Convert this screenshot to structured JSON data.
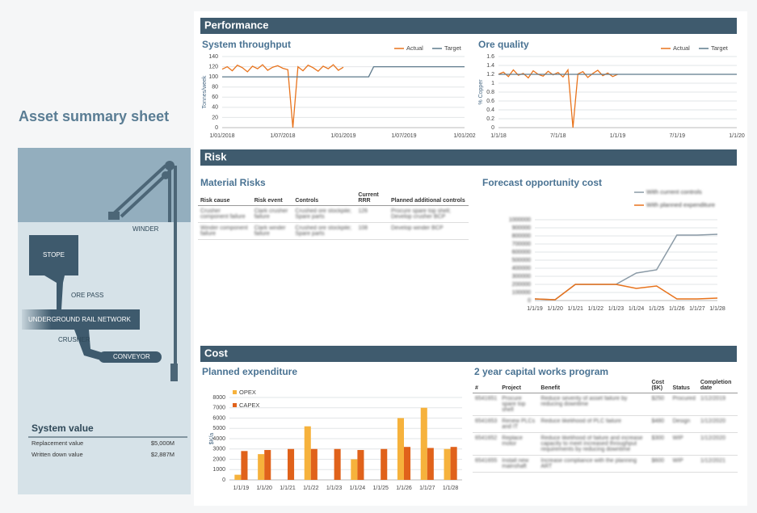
{
  "page_title": "Asset summary sheet",
  "sections": {
    "performance": "Performance",
    "risk": "Risk",
    "cost": "Cost"
  },
  "diagram": {
    "winder": "WINDER",
    "stope": "STOPE",
    "ore_pass": "ORE PASS",
    "rail": "UNDERGROUND RAIL NETWORK",
    "crusher": "CRUSHER",
    "conveyor": "CONVEYOR"
  },
  "system_value": {
    "title": "System value",
    "rows": [
      [
        "Replacement value",
        "$5,000M"
      ],
      [
        "Written down value",
        "$2,887M"
      ]
    ]
  },
  "material_risks": {
    "title": "Material Risks",
    "header": [
      "Risk cause",
      "Risk event",
      "Controls",
      "Current RRR",
      "Planned additional controls"
    ],
    "rows": [
      [
        "Crusher component failure",
        "Clark crusher failure",
        "Crushed ore stockpile; Spare parts",
        "126",
        "Procure spare top shell; Develop crusher BCP"
      ],
      [
        "Winder component failure",
        "Clark winder failure",
        "Crushed ore stockpile; Spare parts",
        "108",
        "Develop winder BCP"
      ]
    ]
  },
  "capital_works": {
    "title": "2 year capital works program",
    "header": [
      "#",
      "Project",
      "Benefit",
      "Cost ($K)",
      "Status",
      "Completion date"
    ],
    "rows": [
      [
        "6541651",
        "Procure spare top shell",
        "Reduce severity of asset failure by reducing downtime",
        "$250",
        "Procured",
        "1/12/2019"
      ],
      [
        "6541653",
        "Renew PLCs and IT",
        "Reduce likelihood of PLC failure",
        "$480",
        "Design",
        "1/12/2020"
      ],
      [
        "6541652",
        "Replace motor",
        "Reduce likelihood of failure and increase capacity to meet increased throughput requirements by reducing downtime",
        "$300",
        "WIP",
        "1/12/2020"
      ],
      [
        "6541655",
        "Install new mainshaft",
        "Increase compliance with the planning ART",
        "$600",
        "WIP",
        "1/12/2021"
      ]
    ]
  },
  "chart_data": [
    {
      "type": "line",
      "title": "System throughput",
      "y_label": "Tonnes/week",
      "categories": [
        "1/01/2018",
        null,
        null,
        null,
        null,
        null,
        null,
        null,
        null,
        null,
        null,
        null,
        "1/07/2018",
        null,
        null,
        null,
        null,
        null,
        null,
        null,
        null,
        null,
        null,
        null,
        "1/01/2019",
        null,
        null,
        null,
        null,
        null,
        null,
        null,
        null,
        null,
        null,
        null,
        "1/07/2019",
        null,
        null,
        null,
        null,
        null,
        null,
        null,
        null,
        null,
        null,
        null,
        "1/01/202"
      ],
      "series": [
        {
          "name": "Actual",
          "color": "#e8731c",
          "values": [
            115,
            120,
            112,
            123,
            118,
            110,
            121,
            116,
            124,
            113,
            119,
            122,
            117,
            114,
            0,
            120,
            112,
            123,
            118,
            111,
            121,
            116,
            124,
            113,
            119,
            null,
            null,
            null,
            null,
            null,
            null,
            null,
            null,
            null,
            null,
            null,
            null,
            null,
            null,
            null,
            null,
            null,
            null,
            null,
            null,
            null,
            null,
            null,
            null
          ]
        },
        {
          "name": "Target",
          "color": "#5e7a8c",
          "values": [
            100,
            100,
            100,
            100,
            100,
            100,
            100,
            100,
            100,
            100,
            100,
            100,
            100,
            100,
            100,
            100,
            100,
            100,
            100,
            100,
            100,
            100,
            100,
            100,
            100,
            100,
            100,
            100,
            100,
            100,
            120,
            120,
            120,
            120,
            120,
            120,
            120,
            120,
            120,
            120,
            120,
            120,
            120,
            120,
            120,
            120,
            120,
            120,
            120
          ]
        }
      ],
      "ylim": [
        0,
        140
      ],
      "yticks": [
        0,
        20,
        40,
        60,
        80,
        100,
        120,
        140
      ],
      "grid": true,
      "legend": "top-right"
    },
    {
      "type": "line",
      "title": "Ore quality",
      "y_label": "% Copper",
      "categories": [
        "1/1/18",
        null,
        null,
        null,
        null,
        null,
        null,
        null,
        null,
        null,
        null,
        null,
        "7/1/18",
        null,
        null,
        null,
        null,
        null,
        null,
        null,
        null,
        null,
        null,
        null,
        "1/1/19",
        null,
        null,
        null,
        null,
        null,
        null,
        null,
        null,
        null,
        null,
        null,
        "7/1/19",
        null,
        null,
        null,
        null,
        null,
        null,
        null,
        null,
        null,
        null,
        null,
        "1/1/20"
      ],
      "series": [
        {
          "name": "Actual",
          "color": "#e8731c",
          "values": [
            1.2,
            1.25,
            1.15,
            1.3,
            1.18,
            1.22,
            1.12,
            1.28,
            1.2,
            1.16,
            1.27,
            1.19,
            1.24,
            1.14,
            1.3,
            0,
            1.21,
            1.26,
            1.13,
            1.22,
            1.29,
            1.17,
            1.23,
            1.15,
            1.2,
            null,
            null,
            null,
            null,
            null,
            null,
            null,
            null,
            null,
            null,
            null,
            null,
            null,
            null,
            null,
            null,
            null,
            null,
            null,
            null,
            null,
            null,
            null,
            null
          ]
        },
        {
          "name": "Target",
          "color": "#5e7a8c",
          "values": [
            1.2,
            1.2,
            1.2,
            1.2,
            1.2,
            1.2,
            1.2,
            1.2,
            1.2,
            1.2,
            1.2,
            1.2,
            1.2,
            1.2,
            1.2,
            1.2,
            1.2,
            1.2,
            1.2,
            1.2,
            1.2,
            1.2,
            1.2,
            1.2,
            1.2,
            1.2,
            1.2,
            1.2,
            1.2,
            1.2,
            1.2,
            1.2,
            1.2,
            1.2,
            1.2,
            1.2,
            1.2,
            1.2,
            1.2,
            1.2,
            1.2,
            1.2,
            1.2,
            1.2,
            1.2,
            1.2,
            1.2,
            1.2,
            1.2
          ]
        }
      ],
      "ylim": [
        0,
        1.6
      ],
      "yticks": [
        0,
        0.2,
        0.4,
        0.6,
        0.8,
        1,
        1.2,
        1.4,
        1.6
      ],
      "grid": true,
      "legend": "top-right"
    },
    {
      "type": "line",
      "title": "Forecast opportunity cost",
      "categories": [
        "1/1/19",
        "1/1/20",
        "1/1/21",
        "1/1/22",
        "1/1/23",
        "1/1/24",
        "1/1/25",
        "1/1/26",
        "1/1/27",
        "1/1/28"
      ],
      "series": [
        {
          "name": "With current controls",
          "color": "#8a9aa6",
          "values": [
            20000,
            10000,
            200000,
            200000,
            200000,
            340000,
            380000,
            810000,
            810000,
            820000
          ]
        },
        {
          "name": "With planned expenditure",
          "color": "#e8731c",
          "values": [
            20000,
            10000,
            200000,
            200000,
            200000,
            150000,
            180000,
            20000,
            20000,
            30000
          ]
        }
      ],
      "ylim": [
        0,
        1000000
      ],
      "yticks": [
        0,
        100000,
        200000,
        300000,
        400000,
        500000,
        600000,
        700000,
        800000,
        900000,
        1000000
      ],
      "grid": true,
      "legend": "top"
    },
    {
      "type": "bar",
      "title": "Planned expenditure",
      "y_label": "$K/a",
      "categories": [
        "1/1/19",
        "1/1/20",
        "1/1/21",
        "1/1/22",
        "1/1/23",
        "1/1/24",
        "1/1/25",
        "1/1/26",
        "1/1/27",
        "1/1/28"
      ],
      "series": [
        {
          "name": "OPEX",
          "color": "#f6b23c",
          "values": [
            500,
            2500,
            null,
            5200,
            null,
            2000,
            null,
            6000,
            7000,
            3000
          ]
        },
        {
          "name": "CAPEX",
          "color": "#e0621b",
          "values": [
            2800,
            2900,
            3000,
            3000,
            3000,
            2900,
            3000,
            3200,
            3100,
            3200
          ]
        }
      ],
      "ylim": [
        0,
        8000
      ],
      "yticks": [
        0,
        1000,
        2000,
        3000,
        4000,
        5000,
        6000,
        7000,
        8000
      ],
      "grid": true,
      "legend": "top-left"
    }
  ]
}
